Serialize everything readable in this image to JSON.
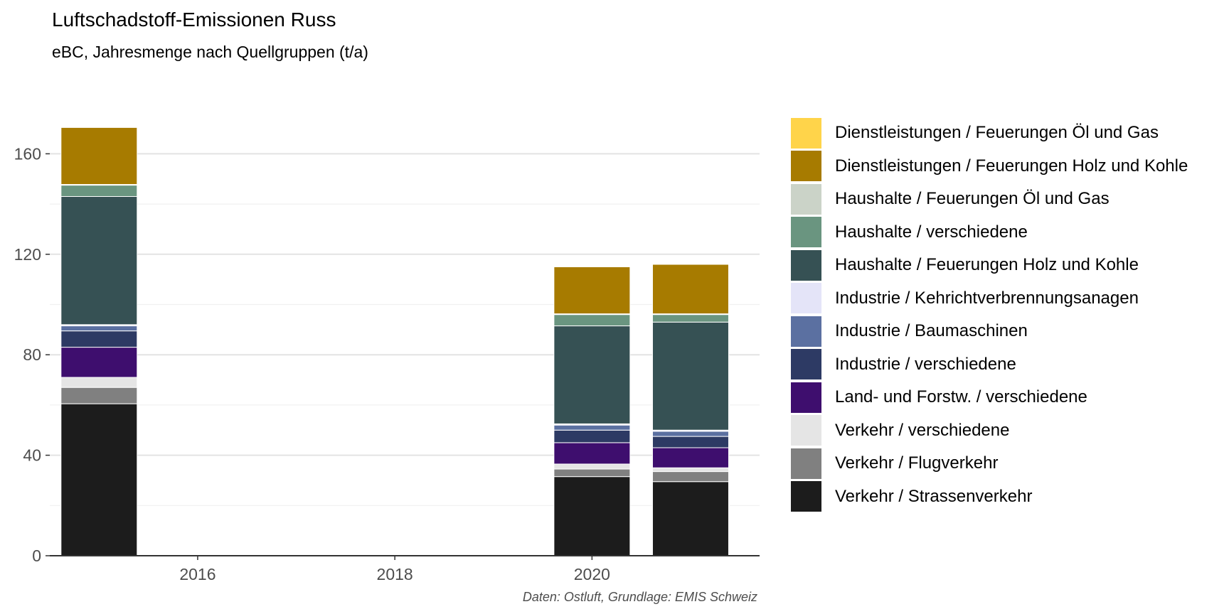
{
  "title": "Luftschadstoff-Emissionen Russ",
  "subtitle": "eBC, Jahresmenge nach Quellgruppen (t/a)",
  "caption": "Daten: Ostluft, Grundlage: EMIS Schweiz",
  "chart_data": {
    "type": "bar",
    "stacked": true,
    "x": [
      2015,
      2020,
      2021
    ],
    "xlim": [
      2014.5,
      2021.7
    ],
    "x_ticks": [
      2016,
      2018,
      2020
    ],
    "ylim": [
      0,
      170
    ],
    "y_ticks": [
      0,
      40,
      80,
      120,
      160
    ],
    "grid": true,
    "legend_position": "right",
    "series": [
      {
        "name": "Verkehr / Strassenverkehr",
        "color": "#1c1c1c",
        "values": [
          60.5,
          31.5,
          29.5
        ]
      },
      {
        "name": "Verkehr / Flugverkehr",
        "color": "#808080",
        "values": [
          6.5,
          3,
          4
        ]
      },
      {
        "name": "Verkehr / verschiedene",
        "color": "#e5e5e5",
        "values": [
          4,
          2,
          1.5
        ]
      },
      {
        "name": "Land- und Forstw. / verschiedene",
        "color": "#3e0e6e",
        "values": [
          12,
          8.5,
          8
        ]
      },
      {
        "name": "Industrie / verschiedene",
        "color": "#2d3a64",
        "values": [
          6.5,
          5,
          4.5
        ]
      },
      {
        "name": "Industrie / Baumaschinen",
        "color": "#5b70a1",
        "values": [
          2,
          2,
          2
        ]
      },
      {
        "name": "Industrie / Kehrichtverbrennungsanagen",
        "color": "#e4e4f8",
        "values": [
          0.5,
          0.5,
          0.5
        ]
      },
      {
        "name": "Haushalte / Feuerungen Holz und Kohle",
        "color": "#365154",
        "values": [
          51,
          39,
          43
        ]
      },
      {
        "name": "Haushalte / verschiedene",
        "color": "#6a9580",
        "values": [
          4.5,
          4.5,
          3
        ]
      },
      {
        "name": "Haushalte / Feuerungen Öl und Gas",
        "color": "#cbd3c8",
        "values": [
          0.3,
          0.3,
          0.3
        ]
      },
      {
        "name": "Dienstleistungen / Feuerungen Holz und Kohle",
        "color": "#a77b00",
        "values": [
          22.7,
          18.7,
          19.7
        ]
      },
      {
        "name": "Dienstleistungen / Feuerungen Öl und Gas",
        "color": "#ffd44a",
        "values": [
          0.2,
          0.2,
          0.2
        ]
      }
    ]
  }
}
